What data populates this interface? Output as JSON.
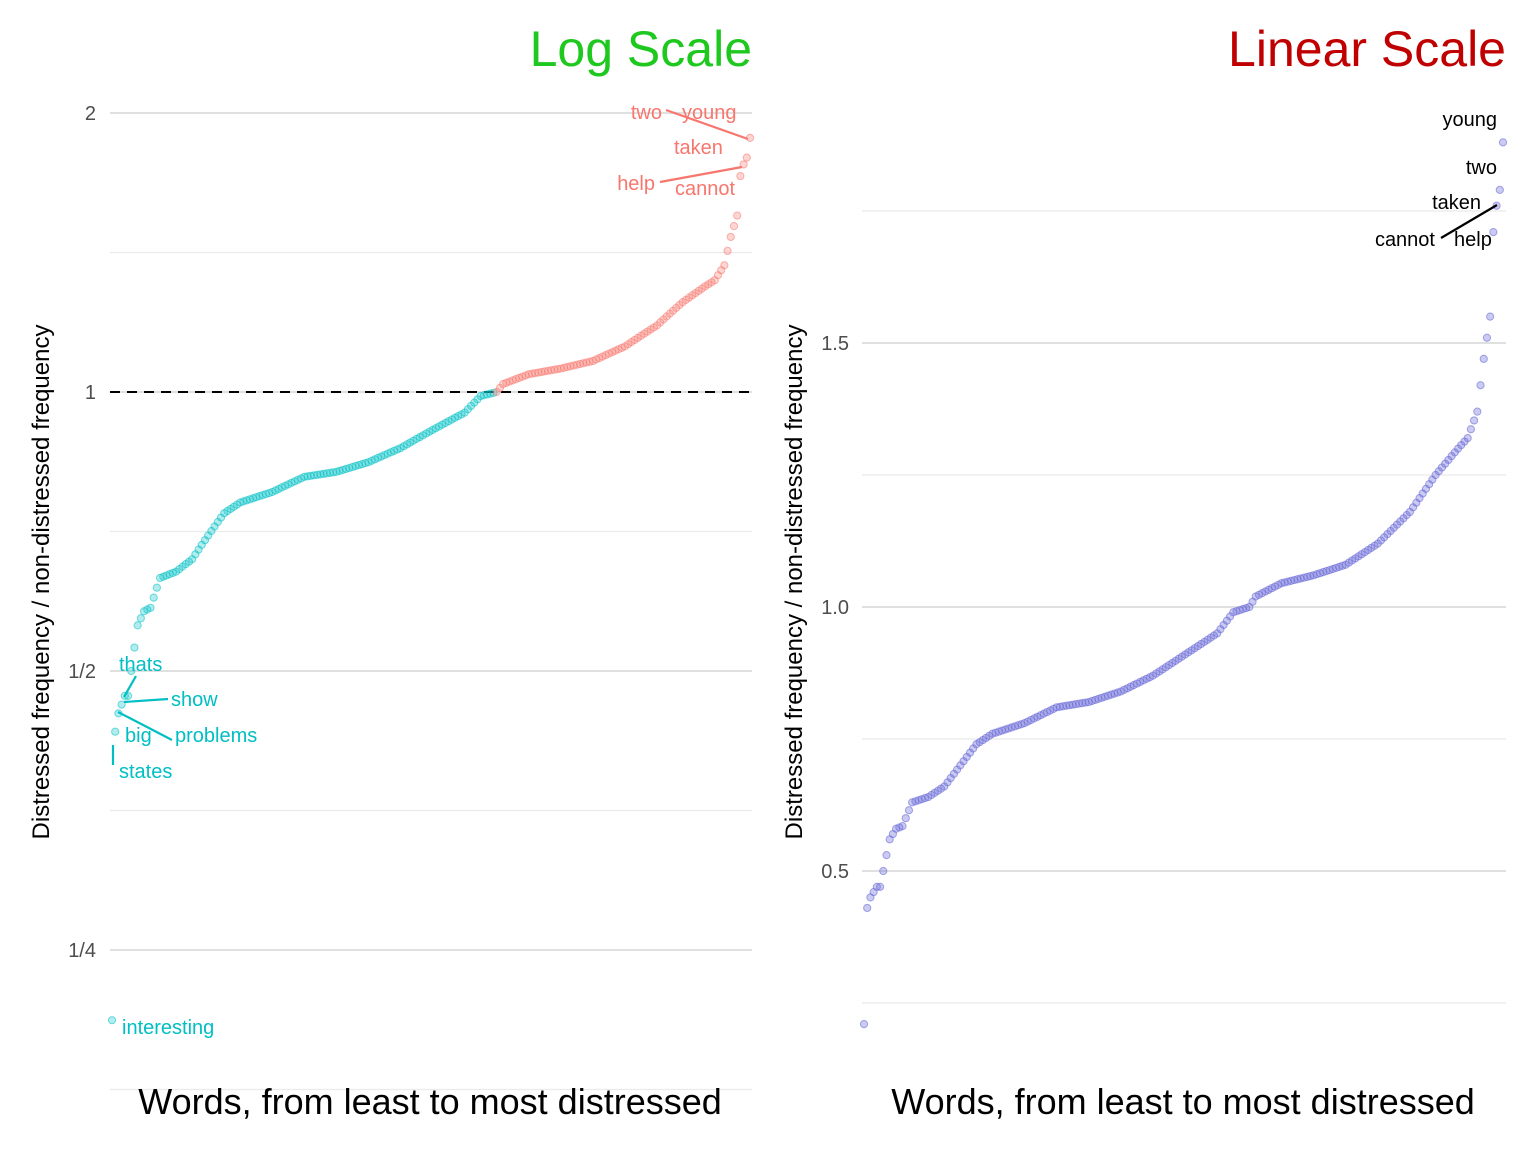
{
  "chart_data": [
    {
      "type": "scatter",
      "title": "Log Scale",
      "title_color": "#1ec81e",
      "xlabel": "Words, from least to most distressed",
      "ylabel": "Distressed frequency / non-distressed frequency",
      "y_scale": "log2",
      "ylim": [
        0.21,
        2.0
      ],
      "y_ticks": [
        {
          "value": 0.25,
          "label": "1/4"
        },
        {
          "value": 0.5,
          "label": "1/2"
        },
        {
          "value": 1,
          "label": "1"
        },
        {
          "value": 2,
          "label": "2"
        }
      ],
      "reference_line": {
        "value": 1,
        "style": "dashed"
      },
      "grid": true,
      "n_points": 200,
      "series_colors": {
        "below_1": "#00bfc4",
        "above_1": "#f8766d"
      },
      "labeled_points": [
        {
          "word": "interesting",
          "rank": 1,
          "value": 0.21,
          "color": "#00bfc4"
        },
        {
          "word": "states",
          "rank": 2,
          "value": 0.43,
          "color": "#00bfc4"
        },
        {
          "word": "big",
          "rank": 3,
          "value": 0.47,
          "color": "#00bfc4"
        },
        {
          "word": "problems",
          "rank": 4,
          "value": 0.47,
          "color": "#00bfc4"
        },
        {
          "word": "show",
          "rank": 5,
          "value": 0.48,
          "color": "#00bfc4"
        },
        {
          "word": "thats",
          "rank": 6,
          "value": 0.485,
          "color": "#00bfc4"
        },
        {
          "word": "help",
          "rank": 196,
          "value": 1.76,
          "color": "#f8766d"
        },
        {
          "word": "cannot",
          "rank": 197,
          "value": 1.78,
          "color": "#f8766d"
        },
        {
          "word": "taken",
          "rank": 198,
          "value": 1.79,
          "color": "#f8766d"
        },
        {
          "word": "two",
          "rank": 199,
          "value": 1.88,
          "color": "#f8766d"
        },
        {
          "word": "young",
          "rank": 200,
          "value": 1.89,
          "color": "#f8766d"
        }
      ]
    },
    {
      "type": "scatter",
      "title": "Linear Scale",
      "title_color": "#c00000",
      "xlabel": "Words, from least to most distressed",
      "ylabel": "Distressed frequency / non-distressed frequency",
      "y_scale": "linear",
      "ylim": [
        0.21,
        1.89
      ],
      "y_ticks": [
        {
          "value": 0.5,
          "label": "0.5"
        },
        {
          "value": 1.0,
          "label": "1.0"
        },
        {
          "value": 1.5,
          "label": "1.5"
        }
      ],
      "grid": true,
      "n_points": 200,
      "point_color": "#6a6ad8",
      "labeled_points": [
        {
          "word": "cannot",
          "rank": 197,
          "value": 1.78
        },
        {
          "word": "help",
          "rank": 196,
          "value": 1.76
        },
        {
          "word": "taken",
          "rank": 198,
          "value": 1.79
        },
        {
          "word": "two",
          "rank": 199,
          "value": 1.88
        },
        {
          "word": "young",
          "rank": 200,
          "value": 1.89
        }
      ]
    }
  ]
}
